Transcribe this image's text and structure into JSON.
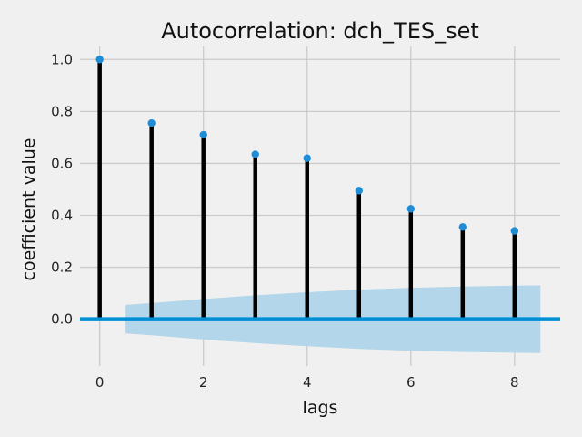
{
  "chart_data": {
    "type": "stem",
    "title": "Autocorrelation: dch_TES_set",
    "xlabel": "lags",
    "ylabel": "coefficient value",
    "xlim": [
      -0.38,
      8.88
    ],
    "ylim": [
      -0.18,
      1.05
    ],
    "xticks": [
      0,
      2,
      4,
      6,
      8
    ],
    "yticks": [
      0.0,
      0.2,
      0.4,
      0.6,
      0.8,
      1.0
    ],
    "ytick_labels": [
      "0.0",
      "0.2",
      "0.4",
      "0.6",
      "0.8",
      "1.0"
    ],
    "grid": true,
    "lags": [
      0,
      1,
      2,
      3,
      4,
      5,
      6,
      7,
      8
    ],
    "values": [
      1.0,
      0.755,
      0.71,
      0.635,
      0.62,
      0.495,
      0.425,
      0.355,
      0.34
    ],
    "confidence_band": {
      "x": [
        0.5,
        1,
        2,
        3,
        4,
        5,
        6,
        7,
        8,
        8.5
      ],
      "upper": [
        0.055,
        0.062,
        0.078,
        0.092,
        0.104,
        0.114,
        0.121,
        0.126,
        0.129,
        0.13
      ],
      "lower": [
        -0.055,
        -0.062,
        -0.078,
        -0.092,
        -0.104,
        -0.114,
        -0.121,
        -0.126,
        -0.129,
        -0.13
      ]
    },
    "colors": {
      "background": "#f0f0f0",
      "grid": "#cbcbcb",
      "stem": "#000000",
      "marker": "#1f8dd6",
      "baseline": "#008fd5",
      "band": "#b3d6ea"
    }
  }
}
